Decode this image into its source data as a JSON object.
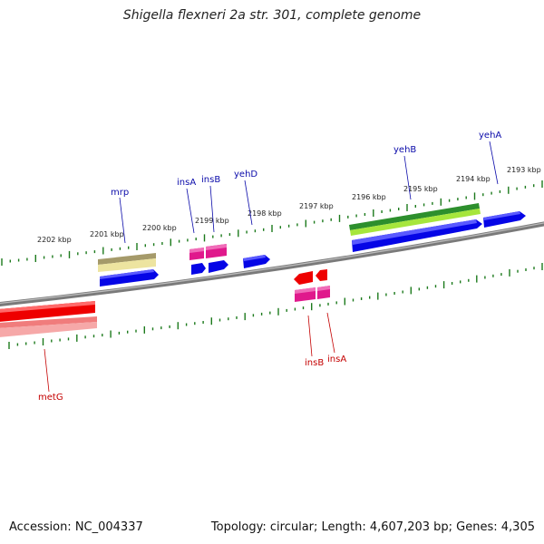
{
  "header": {
    "title": "Shigella flexneri 2a str. 301, complete genome"
  },
  "footer": {
    "accession": "Accession: NC_004337",
    "topology": "Topology: circular; Length: 4,607,203 bp; Genes: 4,305"
  },
  "colors": {
    "backbone": "#7a7a7a",
    "tick": "#1c7a1c",
    "forward_label": "#0b0baa",
    "reverse_label": "#c40000",
    "cds_blue": "#0505e6",
    "cds_red": "#ee0000",
    "pink_gene": "#e0198c",
    "khaki_gene": "#ede4a0",
    "green_gene": "#2d8f2d",
    "lime_gene": "#a6e63c",
    "salmon_gene": "#f07c7c"
  },
  "scale_labels": [
    "2193 kbp",
    "2194 kbp",
    "2195 kbp",
    "2196 kbp",
    "2197 kbp",
    "2198 kbp",
    "2199 kbp",
    "2200 kbp",
    "2201 kbp",
    "2202 kbp"
  ],
  "gene_labels": {
    "forward": [
      "yehA",
      "yehB",
      "yehD",
      "insB",
      "insA",
      "mrp"
    ],
    "reverse": [
      "insB",
      "insA",
      "metG"
    ]
  }
}
